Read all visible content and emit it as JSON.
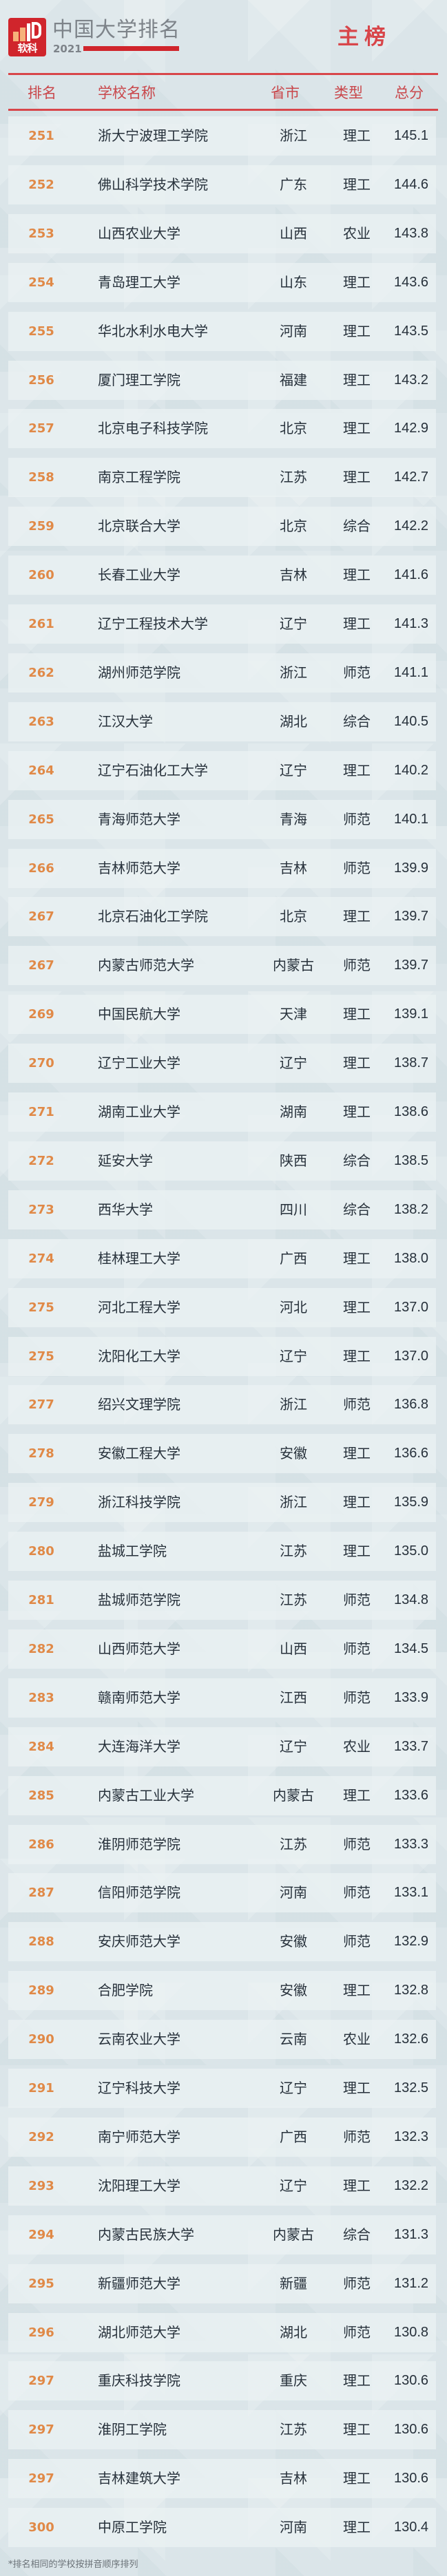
{
  "header": {
    "logo_text": "软科",
    "title": "中国大学排名",
    "year": "2021",
    "board": "主榜",
    "colors": {
      "accent": "#d0252c",
      "rank": "#e08947",
      "header_text": "#c9474b"
    }
  },
  "columns": {
    "rank": "排名",
    "name": "学校名称",
    "province": "省市",
    "type": "类型",
    "score": "总分"
  },
  "rows": [
    {
      "rank": "251",
      "name": "浙大宁波理工学院",
      "province": "浙江",
      "type": "理工",
      "score": "145.1"
    },
    {
      "rank": "252",
      "name": "佛山科学技术学院",
      "province": "广东",
      "type": "理工",
      "score": "144.6"
    },
    {
      "rank": "253",
      "name": "山西农业大学",
      "province": "山西",
      "type": "农业",
      "score": "143.8"
    },
    {
      "rank": "254",
      "name": "青岛理工大学",
      "province": "山东",
      "type": "理工",
      "score": "143.6"
    },
    {
      "rank": "255",
      "name": "华北水利水电大学",
      "province": "河南",
      "type": "理工",
      "score": "143.5"
    },
    {
      "rank": "256",
      "name": "厦门理工学院",
      "province": "福建",
      "type": "理工",
      "score": "143.2"
    },
    {
      "rank": "257",
      "name": "北京电子科技学院",
      "province": "北京",
      "type": "理工",
      "score": "142.9"
    },
    {
      "rank": "258",
      "name": "南京工程学院",
      "province": "江苏",
      "type": "理工",
      "score": "142.7"
    },
    {
      "rank": "259",
      "name": "北京联合大学",
      "province": "北京",
      "type": "综合",
      "score": "142.2"
    },
    {
      "rank": "260",
      "name": "长春工业大学",
      "province": "吉林",
      "type": "理工",
      "score": "141.6"
    },
    {
      "rank": "261",
      "name": "辽宁工程技术大学",
      "province": "辽宁",
      "type": "理工",
      "score": "141.3"
    },
    {
      "rank": "262",
      "name": "湖州师范学院",
      "province": "浙江",
      "type": "师范",
      "score": "141.1"
    },
    {
      "rank": "263",
      "name": "江汉大学",
      "province": "湖北",
      "type": "综合",
      "score": "140.5"
    },
    {
      "rank": "264",
      "name": "辽宁石油化工大学",
      "province": "辽宁",
      "type": "理工",
      "score": "140.2"
    },
    {
      "rank": "265",
      "name": "青海师范大学",
      "province": "青海",
      "type": "师范",
      "score": "140.1"
    },
    {
      "rank": "266",
      "name": "吉林师范大学",
      "province": "吉林",
      "type": "师范",
      "score": "139.9"
    },
    {
      "rank": "267",
      "name": "北京石油化工学院",
      "province": "北京",
      "type": "理工",
      "score": "139.7"
    },
    {
      "rank": "267",
      "name": "内蒙古师范大学",
      "province": "内蒙古",
      "type": "师范",
      "score": "139.7"
    },
    {
      "rank": "269",
      "name": "中国民航大学",
      "province": "天津",
      "type": "理工",
      "score": "139.1"
    },
    {
      "rank": "270",
      "name": "辽宁工业大学",
      "province": "辽宁",
      "type": "理工",
      "score": "138.7"
    },
    {
      "rank": "271",
      "name": "湖南工业大学",
      "province": "湖南",
      "type": "理工",
      "score": "138.6"
    },
    {
      "rank": "272",
      "name": "延安大学",
      "province": "陕西",
      "type": "综合",
      "score": "138.5"
    },
    {
      "rank": "273",
      "name": "西华大学",
      "province": "四川",
      "type": "综合",
      "score": "138.2"
    },
    {
      "rank": "274",
      "name": "桂林理工大学",
      "province": "广西",
      "type": "理工",
      "score": "138.0"
    },
    {
      "rank": "275",
      "name": "河北工程大学",
      "province": "河北",
      "type": "理工",
      "score": "137.0"
    },
    {
      "rank": "275",
      "name": "沈阳化工大学",
      "province": "辽宁",
      "type": "理工",
      "score": "137.0"
    },
    {
      "rank": "277",
      "name": "绍兴文理学院",
      "province": "浙江",
      "type": "师范",
      "score": "136.8"
    },
    {
      "rank": "278",
      "name": "安徽工程大学",
      "province": "安徽",
      "type": "理工",
      "score": "136.6"
    },
    {
      "rank": "279",
      "name": "浙江科技学院",
      "province": "浙江",
      "type": "理工",
      "score": "135.9"
    },
    {
      "rank": "280",
      "name": "盐城工学院",
      "province": "江苏",
      "type": "理工",
      "score": "135.0"
    },
    {
      "rank": "281",
      "name": "盐城师范学院",
      "province": "江苏",
      "type": "师范",
      "score": "134.8"
    },
    {
      "rank": "282",
      "name": "山西师范大学",
      "province": "山西",
      "type": "师范",
      "score": "134.5"
    },
    {
      "rank": "283",
      "name": "赣南师范大学",
      "province": "江西",
      "type": "师范",
      "score": "133.9"
    },
    {
      "rank": "284",
      "name": "大连海洋大学",
      "province": "辽宁",
      "type": "农业",
      "score": "133.7"
    },
    {
      "rank": "285",
      "name": "内蒙古工业大学",
      "province": "内蒙古",
      "type": "理工",
      "score": "133.6"
    },
    {
      "rank": "286",
      "name": "淮阴师范学院",
      "province": "江苏",
      "type": "师范",
      "score": "133.3"
    },
    {
      "rank": "287",
      "name": "信阳师范学院",
      "province": "河南",
      "type": "师范",
      "score": "133.1"
    },
    {
      "rank": "288",
      "name": "安庆师范大学",
      "province": "安徽",
      "type": "师范",
      "score": "132.9"
    },
    {
      "rank": "289",
      "name": "合肥学院",
      "province": "安徽",
      "type": "理工",
      "score": "132.8"
    },
    {
      "rank": "290",
      "name": "云南农业大学",
      "province": "云南",
      "type": "农业",
      "score": "132.6"
    },
    {
      "rank": "291",
      "name": "辽宁科技大学",
      "province": "辽宁",
      "type": "理工",
      "score": "132.5"
    },
    {
      "rank": "292",
      "name": "南宁师范大学",
      "province": "广西",
      "type": "师范",
      "score": "132.3"
    },
    {
      "rank": "293",
      "name": "沈阳理工大学",
      "province": "辽宁",
      "type": "理工",
      "score": "132.2"
    },
    {
      "rank": "294",
      "name": "内蒙古民族大学",
      "province": "内蒙古",
      "type": "综合",
      "score": "131.3"
    },
    {
      "rank": "295",
      "name": "新疆师范大学",
      "province": "新疆",
      "type": "师范",
      "score": "131.2"
    },
    {
      "rank": "296",
      "name": "湖北师范大学",
      "province": "湖北",
      "type": "师范",
      "score": "130.8"
    },
    {
      "rank": "297",
      "name": "重庆科技学院",
      "province": "重庆",
      "type": "理工",
      "score": "130.6"
    },
    {
      "rank": "297",
      "name": "淮阴工学院",
      "province": "江苏",
      "type": "理工",
      "score": "130.6"
    },
    {
      "rank": "297",
      "name": "吉林建筑大学",
      "province": "吉林",
      "type": "理工",
      "score": "130.6"
    },
    {
      "rank": "300",
      "name": "中原工学院",
      "province": "河南",
      "type": "理工",
      "score": "130.4"
    }
  ],
  "footnote": "*排名相同的学校按拼音顺序排列"
}
